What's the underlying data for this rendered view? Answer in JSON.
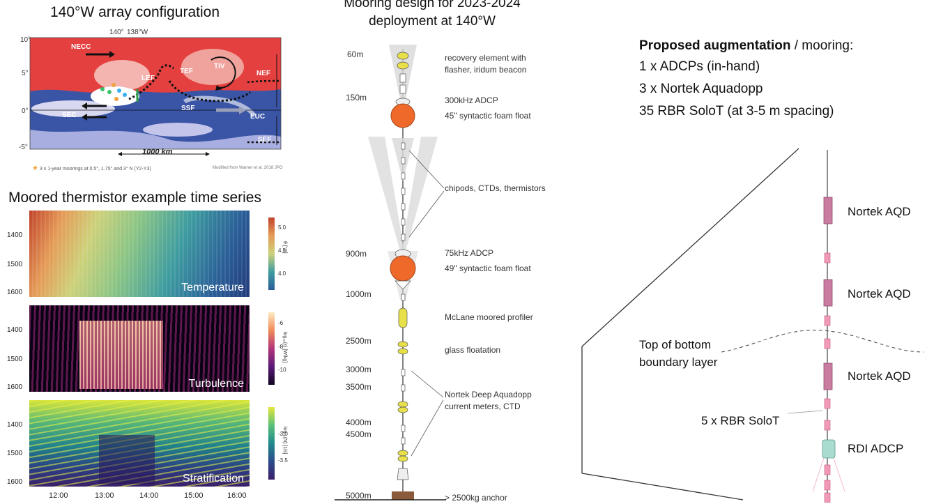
{
  "left": {
    "map_title": "140°W array configuration",
    "map": {
      "lat_ticks": [
        "10°",
        "5°",
        "0°",
        "-5°"
      ],
      "lon_ticks": [
        "140°",
        "138°W"
      ],
      "currents": [
        "NECC",
        "SEC",
        "SSF",
        "EUC",
        "NEF",
        "SEF",
        "LEF",
        "TEF",
        "TIV"
      ],
      "scale_label": "1000 km",
      "footnote": "3 x 1-year moorings at 0.5°, 1.75° and 3° N (Y2-Y3)",
      "credit": "Modified from Warner et al. 2018 JPO"
    },
    "ts_title": "Moored thermistor example time series",
    "depth_ticks": [
      "1400",
      "1500",
      "1600"
    ],
    "time_ticks": [
      "12:00",
      "13:00",
      "14:00",
      "15:00",
      "16:00"
    ],
    "panels": [
      {
        "label": "Temperature",
        "cb_label": "θ [°C]",
        "cb_ticks": [
          "5.0",
          "4.5",
          "4.0"
        ]
      },
      {
        "label": "Turbulence",
        "cb_label": "log₁₀(ε) [W/kg]",
        "cb_ticks": [
          "-6",
          "-8",
          "-10"
        ]
      },
      {
        "label": "Stratification",
        "cb_label": "log₁₀(N) [1/s]",
        "cb_ticks": [
          "-3.0",
          "-3.5"
        ]
      }
    ]
  },
  "middle": {
    "title_line1": "Mooring design for 2023-2024",
    "title_line2": "deployment at 140°W",
    "depths": [
      "60m",
      "150m",
      "900m",
      "1000m",
      "2500m",
      "3000m",
      "3500m",
      "4000m",
      "4500m",
      "5000m"
    ],
    "instruments": [
      {
        "line1": "recovery element with",
        "line2": "flasher, iridum beacon"
      },
      {
        "line1": "300kHz ADCP",
        "line2": "45\" syntactic foam float"
      },
      {
        "line1": "chipods, CTDs, thermistors",
        "line2": ""
      },
      {
        "line1": "75kHz ADCP",
        "line2": "49\" syntactic foam float"
      },
      {
        "line1": "McLane moored profiler",
        "line2": ""
      },
      {
        "line1": "glass floatation",
        "line2": ""
      },
      {
        "line1": "Nortek Deep Aquadopp",
        "line2": "current meters, CTD"
      },
      {
        "line1": "> 2500kg anchor",
        "line2": ""
      }
    ]
  },
  "right": {
    "aug_bold": "Proposed augmentation",
    "aug_rest": " / mooring:",
    "aug_lines": [
      "1 x ADCPs (in-hand)",
      "3 x Nortek Aquadopp",
      "35 RBR SoloT (at 3-5 m spacing)"
    ],
    "zoom_labels": {
      "aqd": "Nortek AQD",
      "bbl_line1": "Top of bottom",
      "bbl_line2": "boundary layer",
      "solot": "5 x RBR SoloT",
      "adcp": "RDI ADCP"
    }
  },
  "colors": {
    "float": "#ef6a2a",
    "aqd": "#c97ba0",
    "solot": "#f19ab7",
    "adcp": "#a9dccf",
    "map_warm": "#e3403f",
    "map_cool": "#3a55a6"
  }
}
